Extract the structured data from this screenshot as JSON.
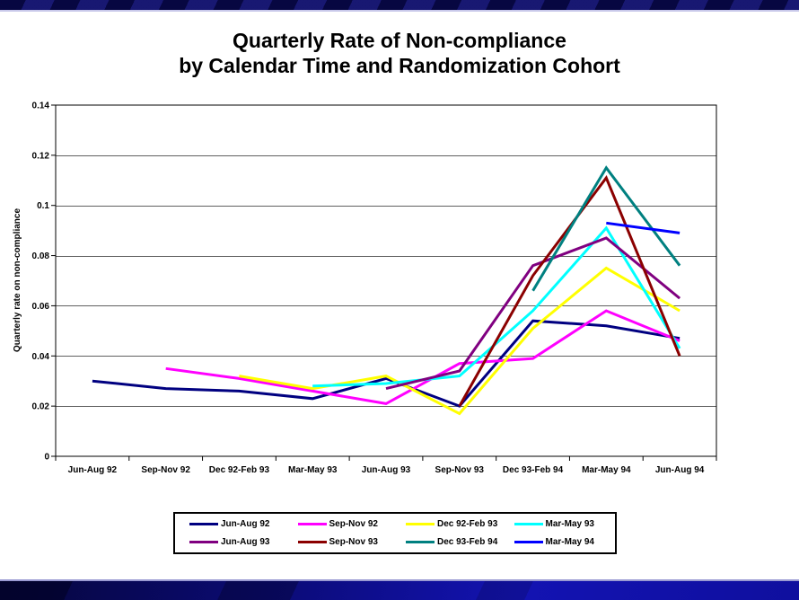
{
  "slide": {
    "title_line1": "Quarterly Rate of Non-compliance",
    "title_line2": "by Calendar Time and Randomization Cohort"
  },
  "chart_data": {
    "type": "line",
    "title": "Quarterly Rate of Non-compliance by Calendar Time and Randomization Cohort",
    "xlabel": "",
    "ylabel": "Quarterly rate on non-compliance",
    "ylim": [
      0,
      0.14
    ],
    "ytick_step": 0.02,
    "ytick_labels": [
      "0",
      "0.02",
      "0.04",
      "0.06",
      "0.08",
      "0.1",
      "0.12",
      "0.14"
    ],
    "grid": true,
    "legend_position": "bottom",
    "categories": [
      "Jun-Aug 92",
      "Sep-Nov 92",
      "Dec 92-Feb 93",
      "Mar-May 93",
      "Jun-Aug 93",
      "Sep-Nov 93",
      "Dec 93-Feb 94",
      "Mar-May 94",
      "Jun-Aug 94"
    ],
    "series": [
      {
        "name": "Jun-Aug 92",
        "color": "#000080",
        "start_index": 0,
        "values": [
          0.03,
          0.027,
          0.026,
          0.023,
          0.031,
          0.02,
          0.054,
          0.052,
          0.047
        ]
      },
      {
        "name": "Sep-Nov 92",
        "color": "#FF00FF",
        "start_index": 1,
        "values": [
          0.035,
          0.031,
          0.026,
          0.021,
          0.037,
          0.039,
          0.058,
          0.046
        ]
      },
      {
        "name": "Dec 92-Feb 93",
        "color": "#FFFF00",
        "start_index": 2,
        "values": [
          0.032,
          0.027,
          0.032,
          0.017,
          0.051,
          0.075,
          0.058
        ]
      },
      {
        "name": "Mar-May 93",
        "color": "#00FFFF",
        "start_index": 3,
        "values": [
          0.028,
          0.029,
          0.032,
          0.058,
          0.091,
          0.043
        ]
      },
      {
        "name": "Jun-Aug 93",
        "color": "#800080",
        "start_index": 4,
        "values": [
          0.027,
          0.034,
          0.076,
          0.087,
          0.063
        ]
      },
      {
        "name": "Sep-Nov 93",
        "color": "#8B0000",
        "start_index": 5,
        "values": [
          0.02,
          0.072,
          0.111,
          0.04
        ]
      },
      {
        "name": "Dec 93-Feb 94",
        "color": "#008080",
        "start_index": 6,
        "values": [
          0.066,
          0.115,
          0.076
        ]
      },
      {
        "name": "Mar-May 94",
        "color": "#0000FF",
        "start_index": 7,
        "values": [
          0.093,
          0.089
        ]
      }
    ]
  },
  "colors": {
    "top_bar": "#0c0c66",
    "bottom_bar": "#1111a8",
    "accent_edge": "#c9c9ea",
    "plot_border": "#000000",
    "gridline": "#606060"
  }
}
